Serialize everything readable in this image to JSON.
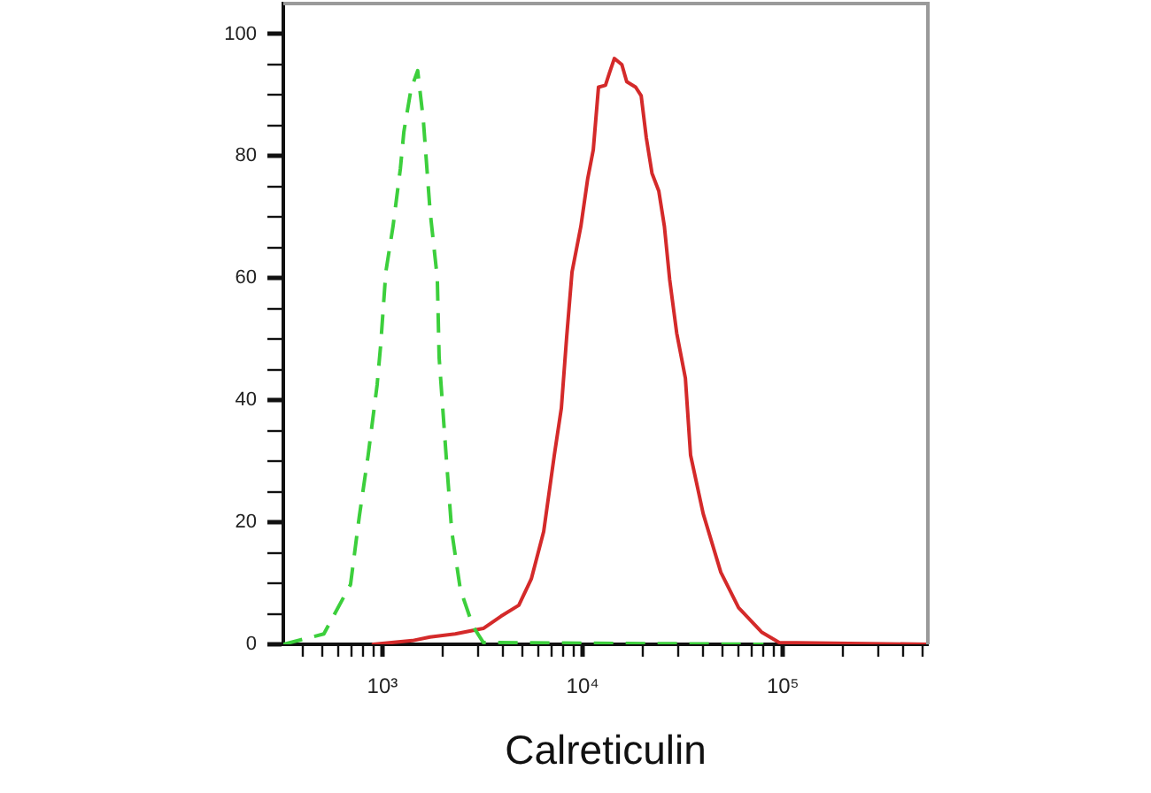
{
  "chart_data": {
    "type": "line",
    "xlabel": "Calreticulin",
    "log": "x",
    "grid": false,
    "legend": false,
    "marker": "none",
    "xlim": [
      320,
      530000
    ],
    "xticks": [
      {
        "value": 400,
        "label": null
      },
      {
        "value": 500,
        "label": null
      },
      {
        "value": 600,
        "label": null
      },
      {
        "value": 700,
        "label": null
      },
      {
        "value": 800,
        "label": null
      },
      {
        "value": 900,
        "label": null
      },
      {
        "value": 1000,
        "label": "10³"
      },
      {
        "value": 2000,
        "label": null
      },
      {
        "value": 3000,
        "label": null
      },
      {
        "value": 4000,
        "label": null
      },
      {
        "value": 5000,
        "label": null
      },
      {
        "value": 6000,
        "label": null
      },
      {
        "value": 7000,
        "label": null
      },
      {
        "value": 8000,
        "label": null
      },
      {
        "value": 9000,
        "label": null
      },
      {
        "value": 10000,
        "label": "10⁴"
      },
      {
        "value": 20000,
        "label": null
      },
      {
        "value": 30000,
        "label": null
      },
      {
        "value": 40000,
        "label": null
      },
      {
        "value": 50000,
        "label": null
      },
      {
        "value": 60000,
        "label": null
      },
      {
        "value": 70000,
        "label": null
      },
      {
        "value": 80000,
        "label": null
      },
      {
        "value": 90000,
        "label": null
      },
      {
        "value": 100000,
        "label": "10⁵"
      },
      {
        "value": 200000,
        "label": null
      },
      {
        "value": 300000,
        "label": null
      },
      {
        "value": 400000,
        "label": null
      },
      {
        "value": 500000,
        "label": null
      }
    ],
    "ylim": [
      0,
      105
    ],
    "yticks": [
      0,
      {
        "value": 5,
        "label": null
      },
      {
        "value": 10,
        "label": null
      },
      {
        "value": 15,
        "label": null
      },
      20,
      {
        "value": 25,
        "label": null
      },
      {
        "value": 30,
        "label": null
      },
      {
        "value": 35,
        "label": null
      },
      40,
      {
        "value": 45,
        "label": null
      },
      {
        "value": 50,
        "label": null
      },
      {
        "value": 55,
        "label": null
      },
      60,
      {
        "value": 65,
        "label": null
      },
      {
        "value": 70,
        "label": null
      },
      {
        "value": 75,
        "label": null
      },
      80,
      {
        "value": 85,
        "label": null
      },
      {
        "value": 90,
        "label": null
      },
      {
        "value": 95,
        "label": null
      },
      100
    ],
    "series": [
      {
        "color": "#3ccf3c",
        "line_style": "dashed",
        "x": [
          320,
          510,
          693,
          767,
          849,
          941,
          980,
          1040,
          1130,
          1230,
          1280,
          1390,
          1500,
          1600,
          1730,
          1880,
          1920,
          2080,
          2220,
          2450,
          2830,
          3190,
          80000
        ],
        "values": [
          0,
          1.7,
          9.8,
          21,
          31,
          42.5,
          49,
          61,
          68.5,
          78,
          84,
          91,
          94,
          86,
          71,
          60,
          47,
          31,
          18.5,
          9,
          3,
          0.3,
          0
        ]
      },
      {
        "color": "#d42a2a",
        "line_style": "solid",
        "x": [
          900,
          1410,
          1730,
          2310,
          3190,
          3910,
          4800,
          5540,
          6390,
          7220,
          7830,
          8320,
          8850,
          9800,
          10600,
          11300,
          12000,
          13000,
          13600,
          14400,
          15700,
          16600,
          18400,
          19600,
          20800,
          22200,
          24000,
          25600,
          27200,
          29500,
          32600,
          34600,
          40000,
          49000,
          60100,
          78300,
          95900,
          530000
        ],
        "values": [
          0,
          0.6,
          1.2,
          1.7,
          2.6,
          4.6,
          6.4,
          10.7,
          18.5,
          31,
          38.7,
          50.3,
          61,
          68.5,
          76.3,
          81,
          91.3,
          91.6,
          93.6,
          96,
          95,
          92.2,
          91.3,
          89.9,
          83,
          77.2,
          74.3,
          68.5,
          59.8,
          51,
          43.6,
          31,
          21.4,
          11.8,
          6,
          2,
          0.3,
          0
        ]
      }
    ]
  }
}
